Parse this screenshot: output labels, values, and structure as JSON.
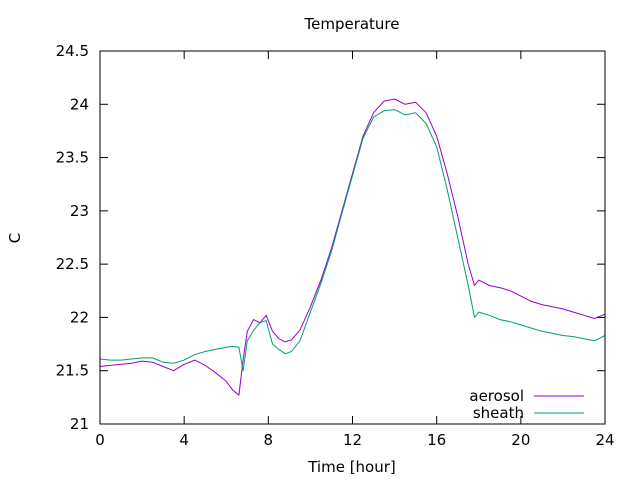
{
  "chart_data": {
    "type": "line",
    "title": "Temperature",
    "xlabel": "Time [hour]",
    "ylabel": "C",
    "xlim": [
      0,
      24
    ],
    "ylim": [
      21,
      24.5
    ],
    "xticks": [
      0,
      4,
      8,
      12,
      16,
      20,
      24
    ],
    "yticks": [
      21,
      21.5,
      22,
      22.5,
      23,
      23.5,
      24,
      24.5
    ],
    "xtick_labels": [
      "0",
      "4",
      "8",
      "12",
      "16",
      "20",
      "24"
    ],
    "ytick_labels": [
      "21",
      "21.5",
      "22",
      "22.5",
      "23",
      "23.5",
      "24",
      "24.5"
    ],
    "grid": false,
    "legend_position": "bottom-right",
    "series": [
      {
        "name": "aerosol",
        "color": "#9400d3",
        "x": [
          0,
          0.5,
          1,
          1.5,
          2,
          2.5,
          3,
          3.5,
          4,
          4.5,
          5,
          5.5,
          6,
          6.3,
          6.6,
          6.8,
          7,
          7.3,
          7.6,
          7.9,
          8.2,
          8.5,
          8.8,
          9.1,
          9.5,
          10,
          10.5,
          11,
          11.5,
          12,
          12.5,
          13,
          13.5,
          14,
          14.5,
          15,
          15.5,
          16,
          16.5,
          17,
          17.5,
          17.8,
          18,
          18.5,
          19,
          19.5,
          20,
          20.5,
          21,
          21.5,
          22,
          22.5,
          23,
          23.5,
          24
        ],
        "values": [
          21.54,
          21.55,
          21.56,
          21.57,
          21.59,
          21.58,
          21.54,
          21.5,
          21.56,
          21.6,
          21.55,
          21.48,
          21.4,
          21.32,
          21.27,
          21.6,
          21.87,
          21.98,
          21.95,
          22.02,
          21.87,
          21.8,
          21.77,
          21.79,
          21.88,
          22.1,
          22.35,
          22.65,
          23.0,
          23.35,
          23.7,
          23.92,
          24.03,
          24.05,
          24.0,
          24.02,
          23.92,
          23.7,
          23.35,
          22.95,
          22.5,
          22.3,
          22.35,
          22.3,
          22.28,
          22.25,
          22.2,
          22.15,
          22.12,
          22.1,
          22.08,
          22.05,
          22.02,
          21.99,
          22.03
        ]
      },
      {
        "name": "sheath",
        "color": "#009e73",
        "x": [
          0,
          0.5,
          1,
          1.5,
          2,
          2.5,
          3,
          3.5,
          4,
          4.5,
          5,
          5.5,
          6,
          6.3,
          6.6,
          6.8,
          7,
          7.3,
          7.6,
          7.9,
          8.2,
          8.5,
          8.8,
          9.1,
          9.5,
          10,
          10.5,
          11,
          11.5,
          12,
          12.5,
          13,
          13.5,
          14,
          14.5,
          15,
          15.5,
          16,
          16.5,
          17,
          17.5,
          17.8,
          18,
          18.5,
          19,
          19.5,
          20,
          20.5,
          21,
          21.5,
          22,
          22.5,
          23,
          23.5,
          24
        ],
        "values": [
          21.61,
          21.6,
          21.6,
          21.61,
          21.62,
          21.62,
          21.58,
          21.57,
          21.6,
          21.65,
          21.68,
          21.7,
          21.72,
          21.73,
          21.72,
          21.5,
          21.78,
          21.88,
          21.95,
          21.97,
          21.75,
          21.7,
          21.66,
          21.68,
          21.78,
          22.05,
          22.32,
          22.62,
          22.98,
          23.33,
          23.68,
          23.88,
          23.94,
          23.95,
          23.9,
          23.92,
          23.82,
          23.6,
          23.2,
          22.75,
          22.3,
          22.0,
          22.05,
          22.02,
          21.98,
          21.96,
          21.93,
          21.9,
          21.87,
          21.85,
          21.83,
          21.82,
          21.8,
          21.78,
          21.83
        ]
      }
    ]
  }
}
